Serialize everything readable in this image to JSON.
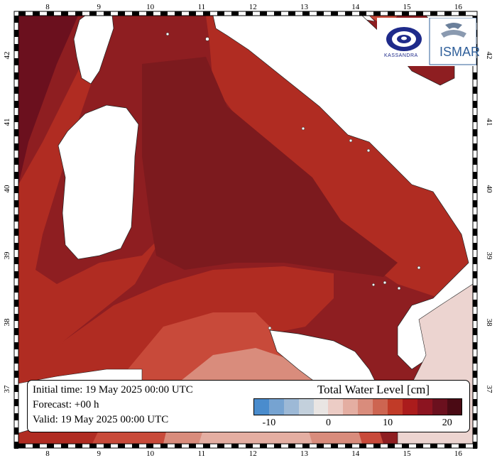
{
  "map": {
    "lon_ticks": [
      "8",
      "9",
      "10",
      "11",
      "12",
      "13",
      "14",
      "15",
      "16"
    ],
    "lat_ticks": [
      "42",
      "41",
      "40",
      "39",
      "38",
      "37"
    ]
  },
  "info": {
    "initial_time": "Initial time: 19 May 2025 00:00 UTC",
    "forecast": "Forecast: +00 h",
    "valid": "Valid: 19 May 2025 00:00 UTC"
  },
  "legend": {
    "title": "Total Water Level [cm]",
    "ticks": [
      "-10",
      "0",
      "10",
      "20"
    ],
    "colors": [
      "#4a8ccd",
      "#76a3d1",
      "#9db9d6",
      "#c3d0dc",
      "#e9e5e3",
      "#ecccc5",
      "#e4aea2",
      "#d98c7c",
      "#cd6551",
      "#c13b28",
      "#ab1c1c",
      "#8c1420",
      "#6b101e",
      "#4a0a14"
    ]
  },
  "logos": {
    "left_text": "KASSANDRA",
    "right_text": "ISMAR"
  },
  "colors": {
    "sea_deep": "#7c1a1e",
    "sea_dark": "#8e1e21",
    "sea_mid": "#b02c22",
    "sea_light": "#c84a3a",
    "sea_pale": "#e0a090",
    "land": "#ffffff",
    "land_right": "#ecd4d0"
  }
}
